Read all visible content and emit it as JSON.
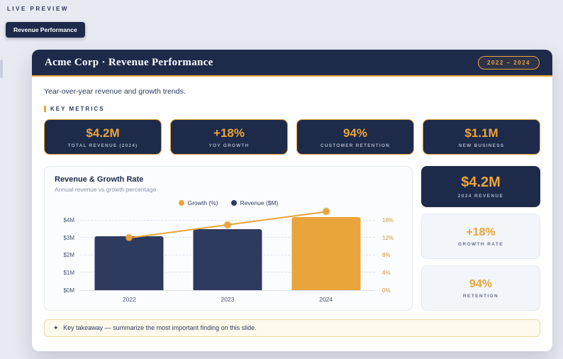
{
  "page": {
    "preview_label": "LIVE PREVIEW",
    "tab": "Revenue Performance"
  },
  "slide": {
    "header": {
      "title": "Acme Corp · Revenue Performance",
      "badge": "2022 – 2024"
    },
    "subtitle": "Year-over-year revenue and growth trends.",
    "section_label": "KEY METRICS",
    "metrics": [
      {
        "value": "$4.2M",
        "label": "TOTAL REVENUE (2024)"
      },
      {
        "value": "+18%",
        "label": "YOY GROWTH"
      },
      {
        "value": "94%",
        "label": "CUSTOMER RETENTION"
      },
      {
        "value": "$1.1M",
        "label": "NEW BUSINESS"
      }
    ],
    "chart": {
      "title": "Revenue & Growth Rate",
      "subtitle": "Annual revenue vs growth percentage",
      "legend": [
        {
          "label": "Growth (%)",
          "color": "#e9a43c"
        },
        {
          "label": "Revenue ($M)",
          "color": "#2f3a5f"
        }
      ]
    },
    "side_cards": [
      {
        "value": "$4.2M",
        "label": "2024 REVENUE"
      },
      {
        "value": "+18%",
        "label": "GROWTH RATE"
      },
      {
        "value": "94%",
        "label": "RETENTION"
      }
    ],
    "takeaway": {
      "icon": "✦",
      "text": "Key takeaway — summarize the most important finding on this slide."
    }
  },
  "chart_data": {
    "type": "bar+line",
    "title": "Revenue & Growth Rate",
    "subtitle": "Annual revenue vs growth percentage",
    "categories": [
      "2022",
      "2023",
      "2024"
    ],
    "series": [
      {
        "name": "Revenue ($M)",
        "type": "bar",
        "axis": "left",
        "values": [
          3.1,
          3.5,
          4.2
        ],
        "bar_colors": [
          "#2f3a5f",
          "#2f3a5f",
          "#e9a43c"
        ]
      },
      {
        "name": "Growth (%)",
        "type": "line",
        "axis": "right",
        "values": [
          12,
          15,
          18
        ],
        "color": "#e9a43c"
      }
    ],
    "left_axis": {
      "tick_labels": [
        "$0M",
        "$1M",
        "$2M",
        "$3M",
        "$4M"
      ],
      "tick_values": [
        0,
        1,
        2,
        3,
        4
      ],
      "max": 4.6
    },
    "right_axis": {
      "tick_labels": [
        "0%",
        "4%",
        "8%",
        "12%",
        "16%"
      ],
      "tick_values": [
        0,
        4,
        8,
        12,
        16
      ],
      "max": 18.4
    },
    "legend_position": "top",
    "grid": "horizontal-dashed"
  }
}
